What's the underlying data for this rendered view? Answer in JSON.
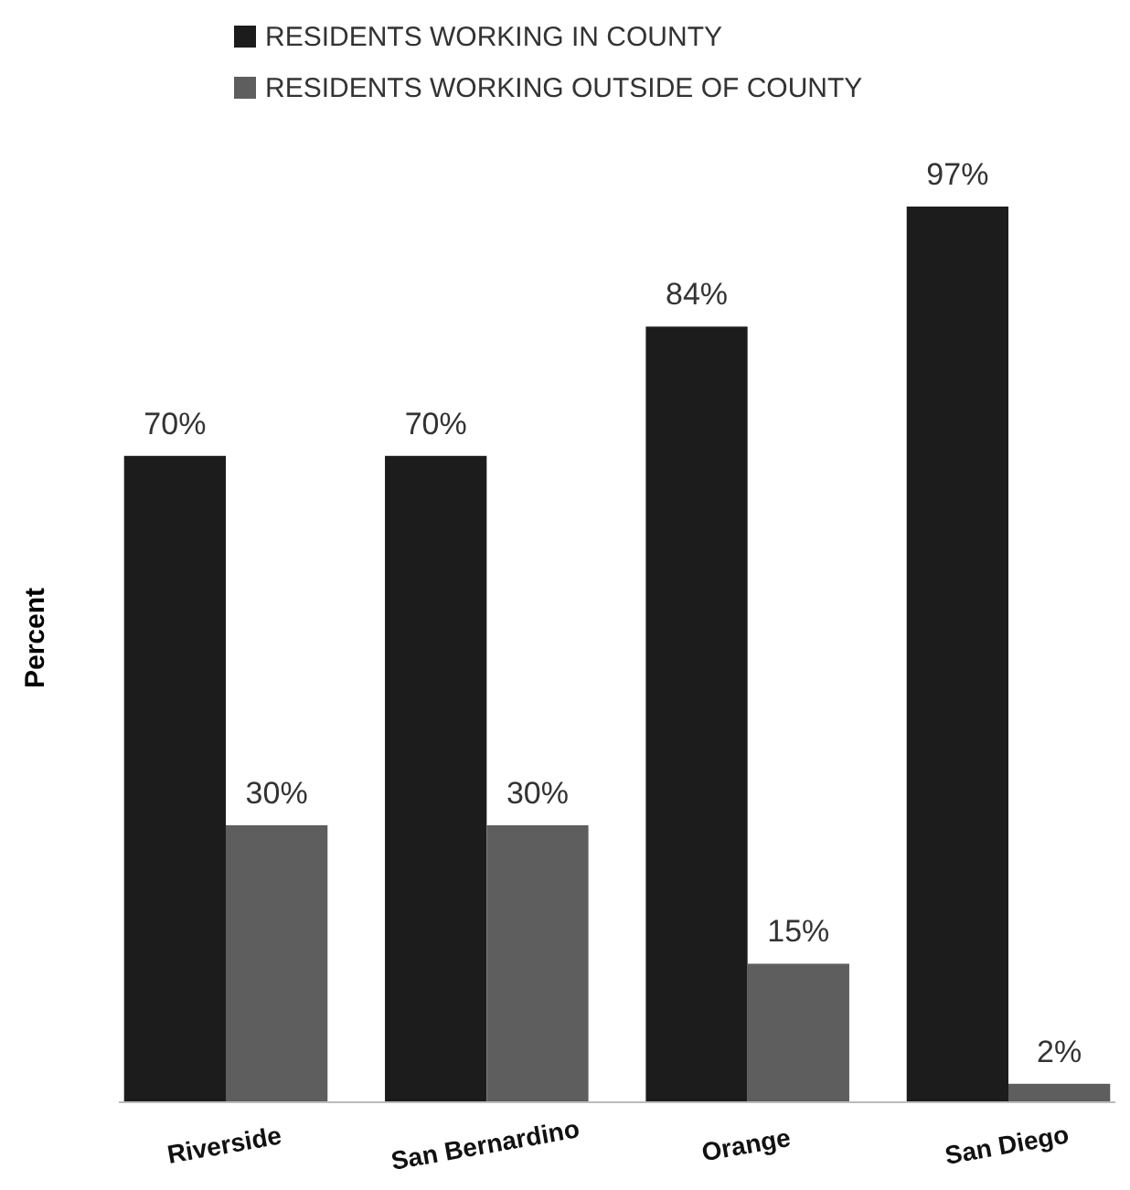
{
  "chart_data": {
    "type": "bar",
    "ylabel": "Percent",
    "categories": [
      "Riverside",
      "San Bernardino",
      "Orange",
      "San Diego"
    ],
    "series": [
      {
        "name": "RESIDENTS WORKING IN COUNTY",
        "color": "#1c1c1c",
        "values": [
          70,
          70,
          84,
          97
        ],
        "value_labels": [
          "70%",
          "70%",
          "84%",
          "97%"
        ]
      },
      {
        "name": "RESIDENTS WORKING OUTSIDE OF COUNTY",
        "color": "#5e5e5e",
        "values": [
          30,
          30,
          15,
          2
        ],
        "value_labels": [
          "30%",
          "30%",
          "15%",
          "2%"
        ]
      }
    ],
    "legend": "top left"
  }
}
